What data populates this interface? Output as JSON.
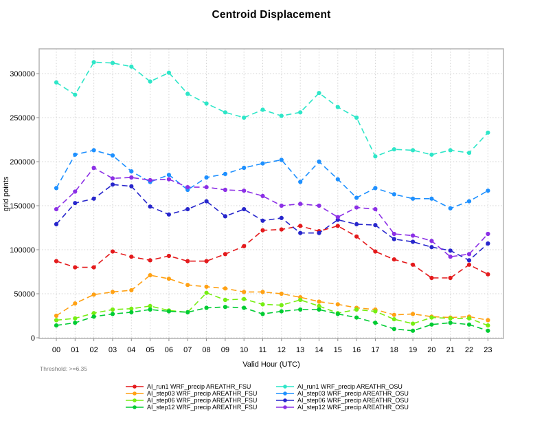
{
  "title": "Centroid Displacement",
  "threshold_label": "Threshold: >=6.35",
  "chart_data": {
    "type": "line",
    "title": "Centroid Displacement",
    "xlabel": "Valid Hour (UTC)",
    "ylabel": "grid points",
    "categories": [
      "00",
      "01",
      "02",
      "03",
      "04",
      "05",
      "06",
      "07",
      "08",
      "09",
      "10",
      "11",
      "12",
      "13",
      "14",
      "15",
      "16",
      "17",
      "18",
      "19",
      "20",
      "21",
      "22",
      "23"
    ],
    "y_ticks": [
      0,
      50000,
      100000,
      150000,
      200000,
      250000,
      300000
    ],
    "ylim": [
      -1000,
      329000
    ],
    "grid": "dotted-both-axes",
    "legend_position": "bottom-center-two-columns",
    "line_style": "dashed-with-circle-markers",
    "series": [
      {
        "name": "AI_run1 WRF_precip AREATHR_FSU",
        "color": "#e41a1c",
        "values": [
          87000,
          80000,
          80000,
          98000,
          92000,
          88000,
          93000,
          87000,
          87000,
          95000,
          104000,
          122000,
          123000,
          127000,
          121000,
          127000,
          115000,
          98000,
          89000,
          83000,
          68000,
          68000,
          83000,
          72000
        ]
      },
      {
        "name": "AI_step03 WRF_precip AREATHR_FSU",
        "color": "#ffa114",
        "values": [
          25000,
          39000,
          49000,
          52000,
          54000,
          71000,
          67000,
          60000,
          58000,
          56000,
          52000,
          52000,
          50000,
          46000,
          41000,
          38000,
          34000,
          32000,
          26000,
          27000,
          24000,
          23000,
          24000,
          20000
        ]
      },
      {
        "name": "AI_step06 WRF_precip AREATHR_FSU",
        "color": "#76ee12",
        "values": [
          20000,
          22000,
          28000,
          32000,
          33000,
          36000,
          31000,
          29000,
          51000,
          43000,
          44000,
          38000,
          37000,
          43000,
          36000,
          28000,
          32000,
          30000,
          21000,
          16000,
          23000,
          22000,
          22000,
          14000
        ]
      },
      {
        "name": "AI_step12 WRF_precip AREATHR_FSU",
        "color": "#00cc33",
        "values": [
          14000,
          17000,
          24000,
          27000,
          29000,
          32000,
          30000,
          29000,
          34000,
          35000,
          34000,
          27000,
          30000,
          32000,
          32000,
          27000,
          23000,
          17000,
          10000,
          8000,
          15000,
          17000,
          15000,
          8000
        ]
      },
      {
        "name": "AI_run1 WRF_precip AREATHR_OSU",
        "color": "#2ee6c8",
        "values": [
          290000,
          276000,
          313000,
          312000,
          308000,
          291000,
          301000,
          277000,
          266000,
          256000,
          250000,
          259000,
          252000,
          256000,
          278000,
          262000,
          250000,
          206000,
          214000,
          213000,
          208000,
          213000,
          210000,
          233000
        ]
      },
      {
        "name": "AI_step03 WRF_precip AREATHR_OSU",
        "color": "#1e90ff",
        "values": [
          170000,
          208000,
          213000,
          207000,
          189000,
          177000,
          185000,
          168000,
          182000,
          186000,
          193000,
          198000,
          202000,
          177000,
          200000,
          180000,
          159000,
          170000,
          163000,
          158000,
          158000,
          147000,
          155000,
          167000
        ]
      },
      {
        "name": "AI_step06 WRF_precip AREATHR_OSU",
        "color": "#2726cc",
        "values": [
          129000,
          153000,
          158000,
          174000,
          172000,
          149000,
          140000,
          146000,
          155000,
          138000,
          146000,
          133000,
          136000,
          119000,
          119000,
          134000,
          129000,
          128000,
          112000,
          109000,
          103000,
          99000,
          88000,
          107000
        ]
      },
      {
        "name": "AI_step12 WRF_precip AREATHR_OSU",
        "color": "#8c30e6",
        "values": [
          146000,
          166000,
          193000,
          181000,
          182000,
          179000,
          180000,
          171000,
          171000,
          168000,
          167000,
          161000,
          150000,
          152000,
          150000,
          137000,
          148000,
          146000,
          118000,
          116000,
          110000,
          92000,
          95000,
          118000
        ]
      }
    ]
  }
}
